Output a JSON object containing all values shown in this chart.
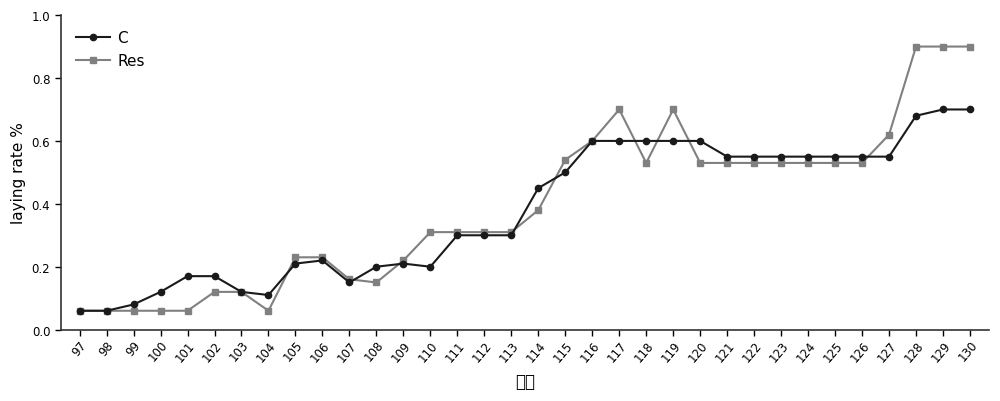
{
  "x": [
    97,
    98,
    99,
    100,
    101,
    102,
    103,
    104,
    105,
    106,
    107,
    108,
    109,
    110,
    111,
    112,
    113,
    114,
    115,
    116,
    117,
    118,
    119,
    120,
    121,
    122,
    123,
    124,
    125,
    126,
    127,
    128,
    129,
    130
  ],
  "C": [
    0.06,
    0.06,
    0.08,
    0.12,
    0.17,
    0.17,
    0.12,
    0.11,
    0.21,
    0.22,
    0.15,
    0.2,
    0.21,
    0.2,
    0.3,
    0.3,
    0.3,
    0.45,
    0.5,
    0.6,
    0.6,
    0.6,
    0.6,
    0.6,
    0.55,
    0.55,
    0.55,
    0.55,
    0.55,
    0.55,
    0.55,
    0.68,
    0.7,
    0.7
  ],
  "Res": [
    0.06,
    0.06,
    0.06,
    0.06,
    0.06,
    0.12,
    0.12,
    0.06,
    0.23,
    0.23,
    0.16,
    0.15,
    0.22,
    0.31,
    0.31,
    0.31,
    0.31,
    0.38,
    0.54,
    0.6,
    0.7,
    0.53,
    0.7,
    0.53,
    0.53,
    0.53,
    0.53,
    0.53,
    0.53,
    0.53,
    0.62,
    0.9,
    0.9,
    0.9
  ],
  "ylabel": "laying rate %",
  "xlabel": "日龄",
  "legend_C": "C",
  "legend_Res": "Res",
  "ylim": [
    0.0,
    1.0
  ],
  "yticks": [
    0.0,
    0.2,
    0.4,
    0.6,
    0.8,
    1.0
  ],
  "color_C": "#1a1a1a",
  "color_Res": "#808080",
  "marker_C": "o",
  "marker_Res": "s",
  "linewidth": 1.5,
  "markersize": 4.5,
  "bg_color": "#ffffff",
  "tick_label_fontsize": 8.5,
  "ylabel_fontsize": 11,
  "xlabel_fontsize": 12,
  "legend_fontsize": 11
}
